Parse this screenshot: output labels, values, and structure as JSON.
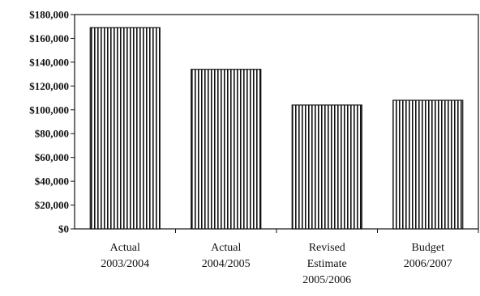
{
  "chart_data": {
    "type": "bar",
    "title": "",
    "xlabel": "",
    "ylabel": "",
    "categories": [
      [
        "Actual",
        "2003/2004"
      ],
      [
        "Actual",
        "2004/2005"
      ],
      [
        "Revised",
        "Estimate",
        "2005/2006"
      ],
      [
        "Budget",
        "2006/2007"
      ]
    ],
    "values": [
      169000,
      134000,
      104000,
      108000
    ],
    "ylim": [
      0,
      180000
    ],
    "ytick_step": 20000,
    "ytick_labels": [
      "$0",
      "$20,000",
      "$40,000",
      "$60,000",
      "$80,000",
      "$100,000",
      "$120,000",
      "$140,000",
      "$160,000",
      "$180,000"
    ],
    "grid": false,
    "bar_style": "vertical-stripes",
    "colors": {
      "bar_stroke": "#111111",
      "bar_fill": "#ffffff",
      "axis": "#111111"
    }
  }
}
